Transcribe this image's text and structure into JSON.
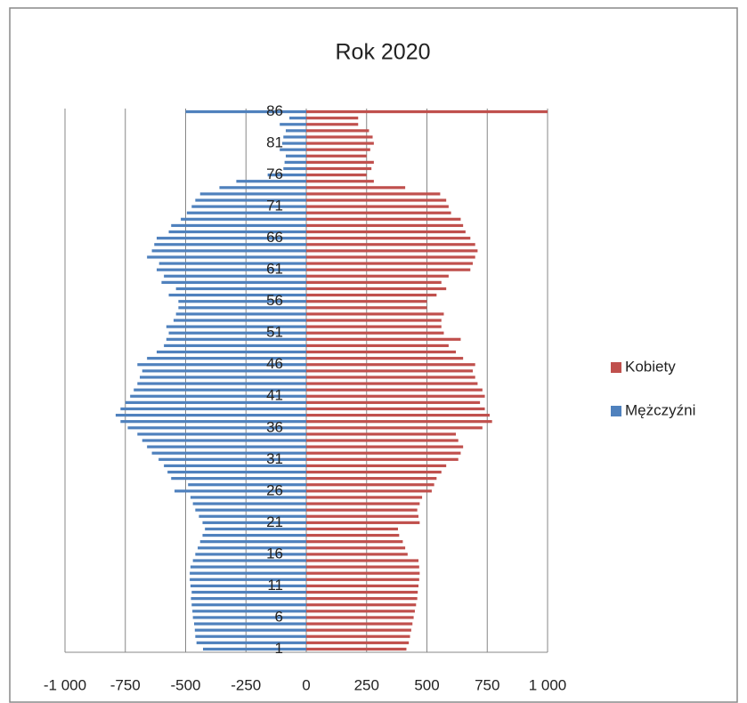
{
  "chart_data": {
    "type": "bar",
    "orientation": "horizontal",
    "title": "Rok 2020",
    "categories": [
      "1",
      null,
      null,
      null,
      null,
      "6",
      null,
      null,
      null,
      null,
      "11",
      null,
      null,
      null,
      null,
      "16",
      null,
      null,
      null,
      null,
      "21",
      null,
      null,
      null,
      null,
      "26",
      null,
      null,
      null,
      null,
      "31",
      null,
      null,
      null,
      null,
      "36",
      null,
      null,
      null,
      null,
      "41",
      null,
      null,
      null,
      null,
      "46",
      null,
      null,
      null,
      null,
      "51",
      null,
      null,
      null,
      null,
      "56",
      null,
      null,
      null,
      null,
      "61",
      null,
      null,
      null,
      null,
      "66",
      null,
      null,
      null,
      null,
      "71",
      null,
      null,
      null,
      null,
      "76",
      null,
      null,
      null,
      null,
      "81",
      null,
      null,
      null,
      null,
      "86"
    ],
    "series": [
      {
        "name": "Kobiety",
        "color": "#c0504d",
        "values": [
          415,
          425,
          430,
          435,
          440,
          445,
          450,
          455,
          460,
          462,
          465,
          468,
          470,
          468,
          465,
          420,
          410,
          400,
          385,
          380,
          470,
          465,
          460,
          470,
          480,
          520,
          530,
          540,
          560,
          580,
          630,
          640,
          650,
          630,
          620,
          730,
          770,
          760,
          740,
          720,
          740,
          730,
          710,
          700,
          690,
          700,
          650,
          620,
          590,
          640,
          570,
          560,
          560,
          570,
          500,
          500,
          540,
          580,
          560,
          590,
          680,
          690,
          700,
          710,
          700,
          680,
          660,
          650,
          640,
          600,
          590,
          580,
          555,
          410,
          280,
          250,
          270,
          280,
          250,
          265,
          280,
          275,
          260,
          215,
          215,
          1000
        ]
      },
      {
        "name": "Mężczyźni",
        "color": "#4f81bd",
        "values": [
          -428,
          -455,
          -460,
          -462,
          -465,
          -470,
          -472,
          -475,
          -478,
          -475,
          -480,
          -483,
          -483,
          -480,
          -470,
          -460,
          -450,
          -440,
          -430,
          -420,
          -430,
          -445,
          -460,
          -470,
          -480,
          -546,
          -490,
          -560,
          -575,
          -590,
          -612,
          -640,
          -660,
          -680,
          -700,
          -740,
          -770,
          -790,
          -770,
          -750,
          -730,
          -715,
          -700,
          -690,
          -680,
          -700,
          -660,
          -620,
          -590,
          -580,
          -570,
          -580,
          -550,
          -540,
          -530,
          -530,
          -570,
          -540,
          -600,
          -590,
          -620,
          -610,
          -660,
          -640,
          -630,
          -620,
          -570,
          -560,
          -520,
          -495,
          -475,
          -460,
          -440,
          -360,
          -290,
          -160,
          -95,
          -90,
          -85,
          -110,
          -100,
          -95,
          -85,
          -110,
          -70,
          -500
        ]
      }
    ],
    "xlim": [
      -1000,
      1000
    ],
    "xticks": [
      {
        "value": -1000,
        "label": "-1 000"
      },
      -750,
      -500,
      -250,
      0,
      250,
      500,
      750,
      {
        "value": 1000,
        "label": "1 000"
      }
    ],
    "grid": true,
    "legend": "right"
  }
}
